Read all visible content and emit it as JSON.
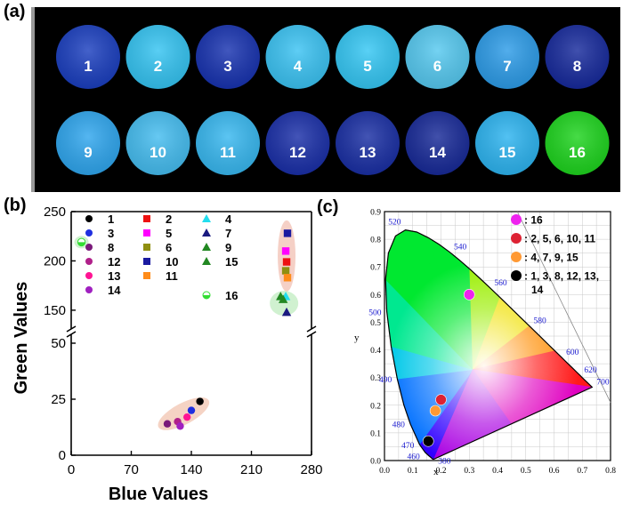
{
  "panel_a": {
    "label": "(a)",
    "wells": [
      {
        "label": "1",
        "color": "#1b3fbf"
      },
      {
        "label": "2",
        "color": "#35c4f2"
      },
      {
        "label": "3",
        "color": "#1833b0"
      },
      {
        "label": "4",
        "color": "#3bc3f3"
      },
      {
        "label": "5",
        "color": "#35c7f4"
      },
      {
        "label": "6",
        "color": "#56c9f0"
      },
      {
        "label": "7",
        "color": "#2d9ce8"
      },
      {
        "label": "8",
        "color": "#172a9c"
      },
      {
        "label": "9",
        "color": "#2fa6ee"
      },
      {
        "label": "10",
        "color": "#45bdf0"
      },
      {
        "label": "11",
        "color": "#38b8f0"
      },
      {
        "label": "12",
        "color": "#1a2fa8"
      },
      {
        "label": "13",
        "color": "#1a2fa4"
      },
      {
        "label": "14",
        "color": "#182a98"
      },
      {
        "label": "15",
        "color": "#2db4f0"
      },
      {
        "label": "16",
        "color": "#1ed41e"
      }
    ]
  },
  "panel_b": {
    "label": "(b)",
    "chart_data": {
      "type": "scatter",
      "xlabel": "Blue Values",
      "ylabel": "Green Values",
      "xlim": [
        0,
        280
      ],
      "ylim_lower": [
        0,
        50
      ],
      "ylim_upper": [
        140,
        250
      ],
      "axis_break": true,
      "x_ticks": [
        "0",
        "70",
        "140",
        "210",
        "280"
      ],
      "y_ticks_lower": [
        "0",
        "25",
        "50"
      ],
      "y_ticks_upper": [
        "150",
        "200",
        "250"
      ],
      "series": [
        {
          "name": "1",
          "marker": "circle",
          "color": "#000000",
          "x": 150,
          "y": 24
        },
        {
          "name": "3",
          "marker": "circle",
          "color": "#1f2fe0",
          "x": 140,
          "y": 20
        },
        {
          "name": "8",
          "marker": "circle",
          "color": "#7a1a7a",
          "x": 112,
          "y": 14
        },
        {
          "name": "12",
          "marker": "circle",
          "color": "#b0208a",
          "x": 124,
          "y": 15
        },
        {
          "name": "13",
          "marker": "circle",
          "color": "#ff1493",
          "x": 135,
          "y": 17
        },
        {
          "name": "14",
          "marker": "circle",
          "color": "#a020c0",
          "x": 127,
          "y": 13
        },
        {
          "name": "2",
          "marker": "square",
          "color": "#ee1111",
          "x": 251,
          "y": 199
        },
        {
          "name": "5",
          "marker": "square",
          "color": "#ff00ff",
          "x": 250,
          "y": 210
        },
        {
          "name": "6",
          "marker": "square",
          "color": "#8f8f10",
          "x": 250,
          "y": 190
        },
        {
          "name": "10",
          "marker": "square",
          "color": "#1a1aa0",
          "x": 252,
          "y": 228
        },
        {
          "name": "11",
          "marker": "square",
          "color": "#ff8c1a",
          "x": 252,
          "y": 183
        },
        {
          "name": "4",
          "marker": "triangle",
          "color": "#22ddee",
          "x": 250,
          "y": 164
        },
        {
          "name": "7",
          "marker": "triangle",
          "color": "#1a1a80",
          "x": 251,
          "y": 148
        },
        {
          "name": "9",
          "marker": "triangle",
          "color": "#228822",
          "x": 244,
          "y": 164
        },
        {
          "name": "15",
          "marker": "triangle",
          "color": "#228822",
          "x": 247,
          "y": 161
        },
        {
          "name": "16",
          "marker": "half-circle",
          "color": "#33dd33",
          "x": 12,
          "y": 219
        }
      ],
      "legend": {
        "columns": [
          [
            {
              "name": "1",
              "marker": "circle",
              "color": "#000000"
            },
            {
              "name": "3",
              "marker": "circle",
              "color": "#1f2fe0"
            },
            {
              "name": "8",
              "marker": "circle",
              "color": "#7a1a7a"
            },
            {
              "name": "12",
              "marker": "circle",
              "color": "#b0208a"
            },
            {
              "name": "13",
              "marker": "circle",
              "color": "#ff1493"
            },
            {
              "name": "14",
              "marker": "circle",
              "color": "#a020c0"
            }
          ],
          [
            {
              "name": "2",
              "marker": "square",
              "color": "#ee1111"
            },
            {
              "name": "5",
              "marker": "square",
              "color": "#ff00ff"
            },
            {
              "name": "6",
              "marker": "square",
              "color": "#8f8f10"
            },
            {
              "name": "10",
              "marker": "square",
              "color": "#1a1aa0"
            },
            {
              "name": "11",
              "marker": "square",
              "color": "#ff8c1a"
            }
          ],
          [
            {
              "name": "4",
              "marker": "triangle",
              "color": "#22ddee"
            },
            {
              "name": "7",
              "marker": "triangle",
              "color": "#1a1a80"
            },
            {
              "name": "9",
              "marker": "triangle",
              "color": "#228822"
            },
            {
              "name": "15",
              "marker": "triangle",
              "color": "#228822"
            }
          ],
          [
            {
              "name": "16",
              "marker": "half-circle",
              "color": "#33dd33"
            }
          ]
        ]
      }
    }
  },
  "panel_c": {
    "label": "(c)",
    "chart_data": {
      "type": "scatter",
      "xlabel": "x",
      "ylabel": "y",
      "xlim": [
        0.0,
        0.8
      ],
      "ylim": [
        0.0,
        0.9
      ],
      "x_ticks": [
        "0.0",
        "0.1",
        "0.2",
        "0.3",
        "0.4",
        "0.5",
        "0.6",
        "0.7",
        "0.8"
      ],
      "y_ticks": [
        "0.0",
        "0.1",
        "0.2",
        "0.3",
        "0.4",
        "0.5",
        "0.6",
        "0.7",
        "0.8",
        "0.9"
      ],
      "wavelength_labels": [
        {
          "text": "520",
          "x": 0.074,
          "y": 0.834
        },
        {
          "text": "540",
          "x": 0.23,
          "y": 0.754
        },
        {
          "text": "560",
          "x": 0.373,
          "y": 0.624
        },
        {
          "text": "580",
          "x": 0.512,
          "y": 0.487
        },
        {
          "text": "600",
          "x": 0.627,
          "y": 0.373
        },
        {
          "text": "620",
          "x": 0.691,
          "y": 0.308
        },
        {
          "text": "700",
          "x": 0.735,
          "y": 0.265
        },
        {
          "text": "500",
          "x": 0.008,
          "y": 0.538
        },
        {
          "text": "490",
          "x": 0.045,
          "y": 0.295
        },
        {
          "text": "480",
          "x": 0.091,
          "y": 0.133
        },
        {
          "text": "470",
          "x": 0.124,
          "y": 0.058
        },
        {
          "text": "460",
          "x": 0.144,
          "y": 0.03
        },
        {
          "text": "380",
          "x": 0.174,
          "y": 0.005
        }
      ],
      "points": [
        {
          "group": "16",
          "color": "#ee22ee",
          "x": 0.3,
          "y": 0.6
        },
        {
          "group": "2, 5, 6, 10, 11",
          "color": "#dd2233",
          "x": 0.2,
          "y": 0.22
        },
        {
          "group": "4, 7, 9, 15",
          "color": "#ff9933",
          "x": 0.18,
          "y": 0.18
        },
        {
          "group": "1, 3, 8, 12, 13, 14",
          "color": "#000000",
          "x": 0.155,
          "y": 0.07
        }
      ],
      "legend": [
        {
          "text": "16",
          "color": "#ee22ee"
        },
        {
          "text": "2, 5, 6, 10, 11",
          "color": "#dd2233"
        },
        {
          "text": "4, 7, 9, 15",
          "color": "#ff9933"
        },
        {
          "text": "1, 3, 8, 12, 13,",
          "text2": "14",
          "color": "#000000"
        }
      ]
    }
  }
}
